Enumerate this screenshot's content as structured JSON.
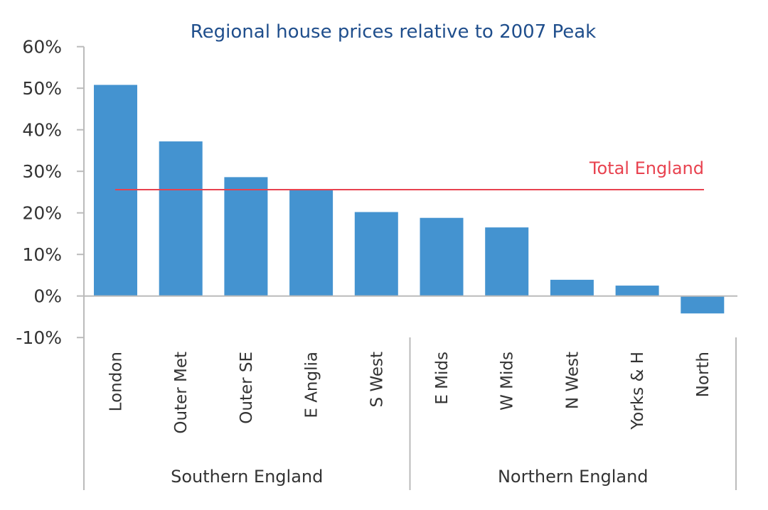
{
  "chart_data": {
    "type": "bar",
    "title": "Regional house prices relative to 2007 Peak",
    "xlabel": "",
    "ylabel": "",
    "ylim": [
      -10,
      60
    ],
    "yticks": [
      60,
      50,
      40,
      30,
      20,
      10,
      0,
      -10
    ],
    "ytick_labels": [
      "60%",
      "50%",
      "40%",
      "30%",
      "20%",
      "10%",
      "0%",
      "-10%"
    ],
    "categories": [
      "London",
      "Outer Met",
      "Outer SE",
      "E Anglia",
      "S West",
      "E Mids",
      "W Mids",
      "N West",
      "Yorks & H",
      "North"
    ],
    "values": [
      50.8,
      37.2,
      28.6,
      25.6,
      20.2,
      18.8,
      16.5,
      3.9,
      2.5,
      -4.2
    ],
    "groups": [
      {
        "label": "Southern England",
        "count": 5
      },
      {
        "label": "Northern England",
        "count": 5
      }
    ],
    "reference_line": {
      "label": "Total England",
      "value": 25.6
    },
    "grid": false,
    "colors": {
      "bar": "#4493d0",
      "reference": "#e8424f",
      "title": "#1f4e8c"
    }
  }
}
